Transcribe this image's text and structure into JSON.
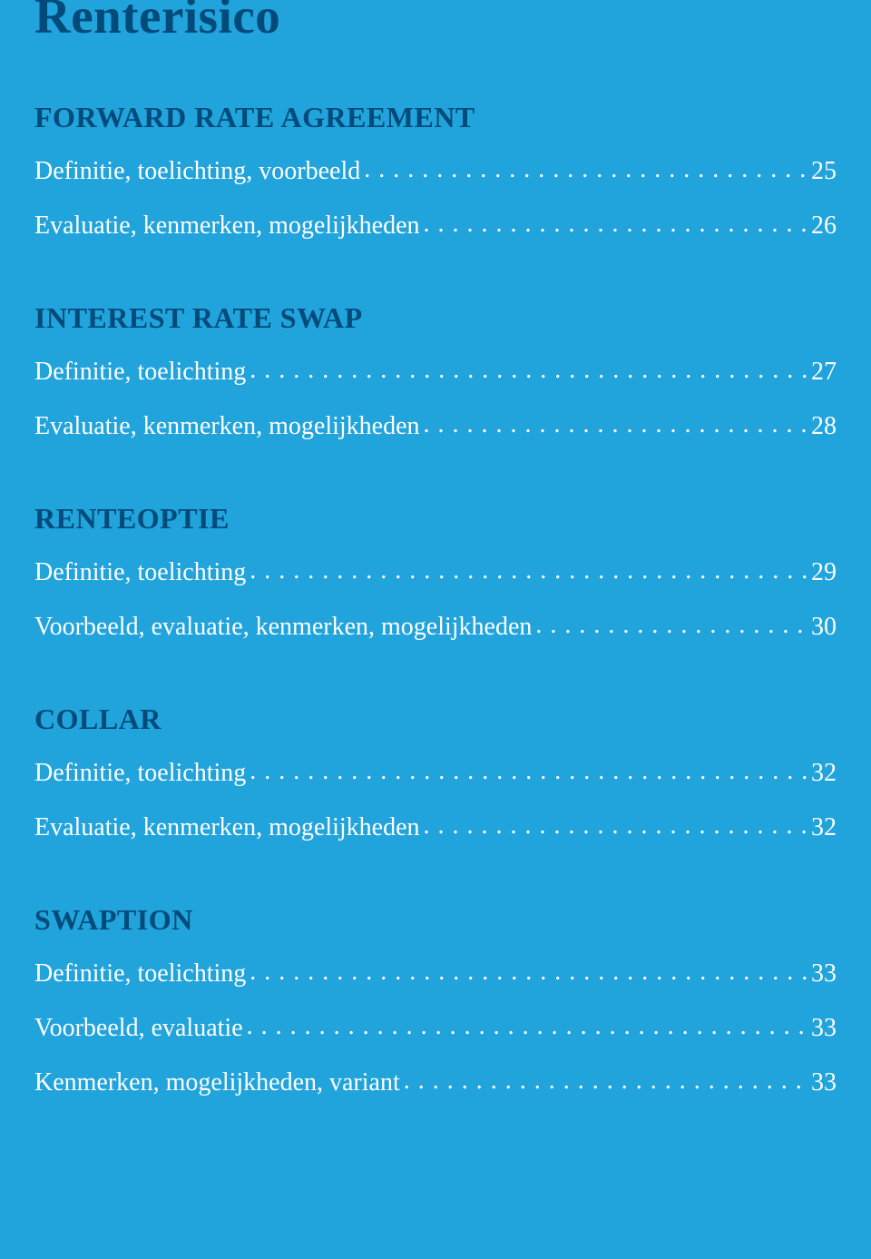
{
  "colors": {
    "background": "#21a3dc",
    "heading": "#004b7a",
    "text": "#ffffff"
  },
  "typography": {
    "title_fontsize": 55,
    "section_heading_fontsize": 32,
    "entry_fontsize": 28,
    "font_family": "Georgia, serif"
  },
  "title": "Renterisico",
  "sections": [
    {
      "heading": "FORWARD RATE AGREEMENT",
      "entries": [
        {
          "label": "Definitie, toelichting, voorbeeld",
          "page": "25"
        },
        {
          "label": "Evaluatie, kenmerken, mogelijkheden",
          "page": "26"
        }
      ]
    },
    {
      "heading": "INTEREST RATE SWAP",
      "entries": [
        {
          "label": "Definitie, toelichting",
          "page": "27"
        },
        {
          "label": "Evaluatie, kenmerken, mogelijkheden",
          "page": "28"
        }
      ]
    },
    {
      "heading": "RENTEOPTIE",
      "entries": [
        {
          "label": "Definitie, toelichting",
          "page": "29"
        },
        {
          "label": "Voorbeeld, evaluatie, kenmerken, mogelijkheden",
          "page": "30"
        }
      ]
    },
    {
      "heading": "COLLAR",
      "entries": [
        {
          "label": "Definitie, toelichting",
          "page": "32"
        },
        {
          "label": "Evaluatie, kenmerken, mogelijkheden",
          "page": "32"
        }
      ]
    },
    {
      "heading": "SWAPTION",
      "entries": [
        {
          "label": "Definitie, toelichting",
          "page": "33"
        },
        {
          "label": "Voorbeeld, evaluatie",
          "page": "33"
        },
        {
          "label": "Kenmerken, mogelijkheden, variant",
          "page": "33"
        }
      ]
    }
  ]
}
